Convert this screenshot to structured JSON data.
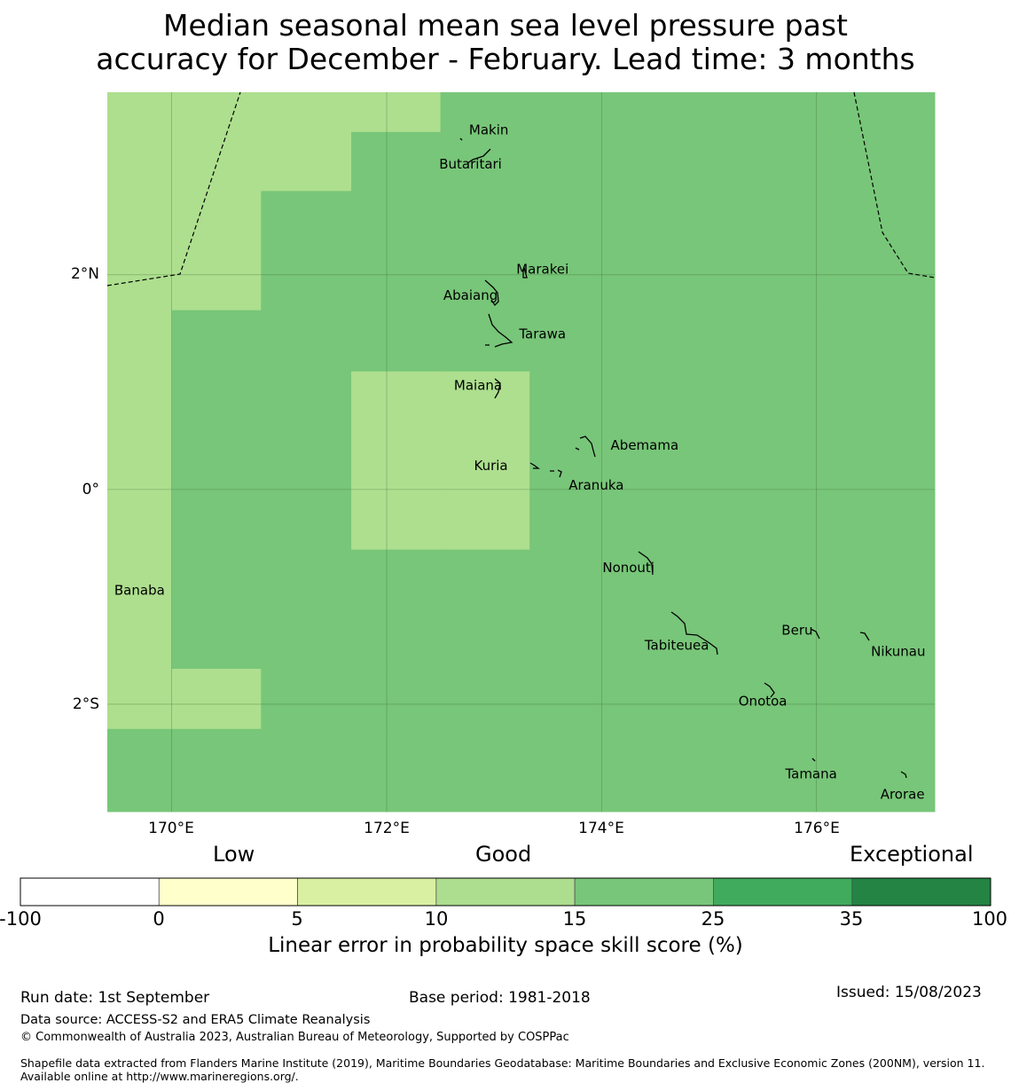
{
  "title": {
    "line1": "Median seasonal mean sea level pressure past",
    "line2": "accuracy for December - February. Lead time: 3 months"
  },
  "map": {
    "lat_labels": [
      "2°N",
      "0°",
      "2°S"
    ],
    "lon_labels": [
      "170°E",
      "172°E",
      "174°E",
      "176°E"
    ],
    "colors": {
      "band_10_15": "#addf8e",
      "band_15_25": "#78c679",
      "gridline": "#3a6b3a",
      "coast": "#000000",
      "boundary": "#000000"
    },
    "places": [
      {
        "name": "Makin",
        "lon": 172.95,
        "lat": 3.35
      },
      {
        "name": "Butaritari",
        "lon": 172.78,
        "lat": 3.03
      },
      {
        "name": "Marakei",
        "lon": 173.45,
        "lat": 2.05
      },
      {
        "name": "Abaiang",
        "lon": 172.78,
        "lat": 1.81
      },
      {
        "name": "Tarawa",
        "lon": 173.45,
        "lat": 1.45
      },
      {
        "name": "Maiana",
        "lon": 172.85,
        "lat": 0.97
      },
      {
        "name": "Abemama",
        "lon": 174.4,
        "lat": 0.41
      },
      {
        "name": "Kuria",
        "lon": 172.97,
        "lat": 0.22
      },
      {
        "name": "Aranuka",
        "lon": 173.95,
        "lat": 0.04
      },
      {
        "name": "Nonouti",
        "lon": 174.25,
        "lat": -0.73
      },
      {
        "name": "Banaba",
        "lon": 169.7,
        "lat": -0.94
      },
      {
        "name": "Beru",
        "lon": 175.82,
        "lat": -1.31
      },
      {
        "name": "Tabiteuea",
        "lon": 174.7,
        "lat": -1.45
      },
      {
        "name": "Nikunau",
        "lon": 176.76,
        "lat": -1.51
      },
      {
        "name": "Onotoa",
        "lon": 175.5,
        "lat": -1.97
      },
      {
        "name": "Tamana",
        "lon": 175.95,
        "lat": -2.65
      },
      {
        "name": "Arorae",
        "lon": 176.8,
        "lat": -2.84
      }
    ],
    "skill_grid": {
      "lon_edges": [
        169.4,
        170.0,
        170.83,
        171.67,
        172.5,
        173.33,
        174.17,
        175.0,
        175.83,
        176.67,
        177.1
      ],
      "lat_edges": [
        3.7,
        3.33,
        2.78,
        1.67,
        1.1,
        -0.56,
        -1.67,
        -2.23,
        -3.0
      ],
      "band_names": [
        "10-15",
        "15-25"
      ],
      "rows": [
        [
          "10-15",
          "10-15",
          "10-15",
          "10-15",
          "15-25",
          "15-25",
          "15-25",
          "15-25",
          "15-25",
          "15-25"
        ],
        [
          "10-15",
          "10-15",
          "10-15",
          "15-25",
          "15-25",
          "15-25",
          "15-25",
          "15-25",
          "15-25",
          "15-25"
        ],
        [
          "10-15",
          "10-15",
          "15-25",
          "15-25",
          "15-25",
          "15-25",
          "15-25",
          "15-25",
          "15-25",
          "15-25"
        ],
        [
          "10-15",
          "15-25",
          "15-25",
          "15-25",
          "15-25",
          "15-25",
          "15-25",
          "15-25",
          "15-25",
          "15-25"
        ],
        [
          "10-15",
          "15-25",
          "15-25",
          "10-15",
          "10-15",
          "15-25",
          "15-25",
          "15-25",
          "15-25",
          "15-25"
        ],
        [
          "10-15",
          "15-25",
          "15-25",
          "15-25",
          "15-25",
          "15-25",
          "15-25",
          "15-25",
          "15-25",
          "15-25"
        ],
        [
          "10-15",
          "10-15",
          "15-25",
          "15-25",
          "15-25",
          "15-25",
          "15-25",
          "15-25",
          "15-25",
          "15-25"
        ],
        [
          "15-25",
          "15-25",
          "15-25",
          "15-25",
          "15-25",
          "15-25",
          "15-25",
          "15-25",
          "15-25",
          "15-25"
        ]
      ]
    }
  },
  "colorbar": {
    "category_labels": {
      "low": "Low",
      "good": "Good",
      "exceptional": "Exceptional"
    },
    "ticks": [
      "-100",
      "0",
      "5",
      "10",
      "15",
      "25",
      "35",
      "100"
    ],
    "colors": [
      "#ffffff",
      "#ffffcc",
      "#d9f0a3",
      "#addd8e",
      "#78c679",
      "#41ab5d",
      "#238443"
    ],
    "label": "Linear error in probability space skill score (%)"
  },
  "footer": {
    "run_date": "Run date: 1st September",
    "base_period": "Base period: 1981-2018",
    "issued": "Issued: 15/08/2023",
    "data_source": "Data source: ACCESS-S2 and ERA5 Climate Reanalysis",
    "copyright": "© Commonwealth of Australia 2023, Australian Bureau of Meteorology, Supported by COSPPac",
    "shapefile": "Shapefile data extracted from Flanders Marine Institute (2019), Maritime Boundaries Geodatabase: Maritime Boundaries and Exclusive Economic Zones (200NM), version 11. Available online at http://www.marineregions.org/."
  }
}
